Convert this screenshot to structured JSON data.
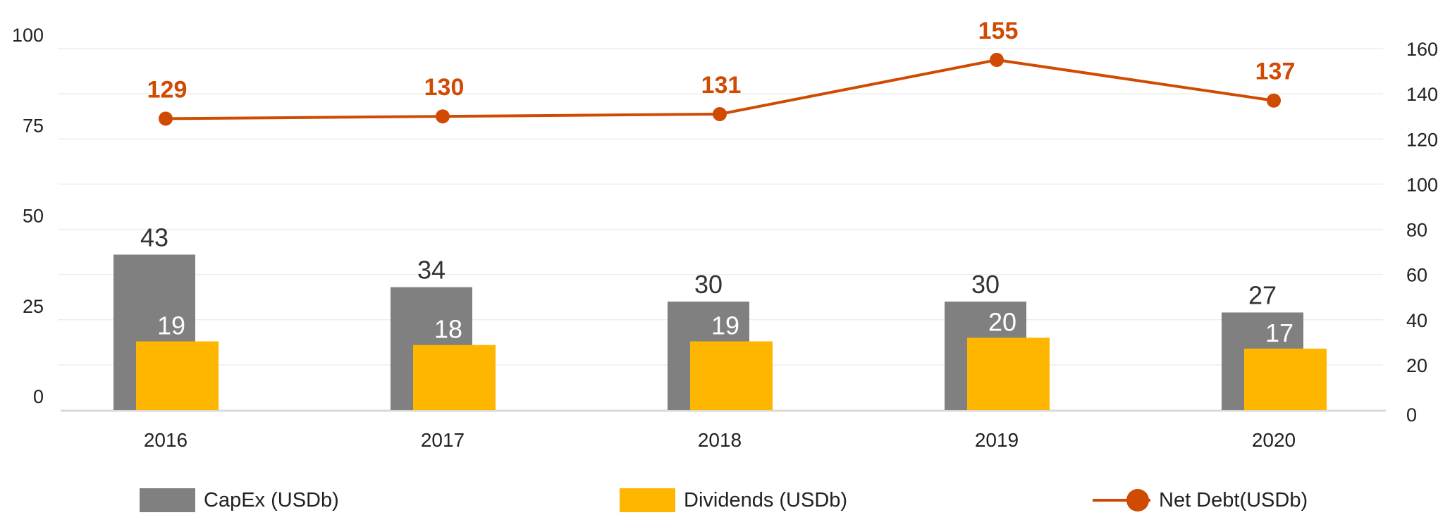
{
  "chart_data": {
    "type": "bar+line",
    "categories": [
      "2016",
      "2017",
      "2018",
      "2019",
      "2020"
    ],
    "series": [
      {
        "name": "CapEx (USDb)",
        "type": "bar",
        "axis": "left",
        "color": "#808080",
        "values": [
          43,
          34,
          30,
          30,
          27
        ]
      },
      {
        "name": "Dividends (USDb)",
        "type": "bar",
        "axis": "left",
        "color": "#FFB600",
        "values": [
          19,
          18,
          19,
          20,
          17
        ]
      },
      {
        "name": "Net Debt(USDb)",
        "type": "line",
        "axis": "right",
        "color": "#D04A02",
        "values": [
          129,
          130,
          131,
          155,
          137
        ]
      }
    ],
    "left_axis": {
      "range": [
        0,
        100
      ],
      "ticks": [
        "0",
        "25",
        "50",
        "75",
        "100"
      ]
    },
    "right_axis": {
      "range": [
        0,
        160
      ],
      "ticks": [
        "0",
        "20",
        "40",
        "60",
        "80",
        "100",
        "120",
        "140",
        "160"
      ]
    },
    "grid": true,
    "legend_position": "bottom"
  }
}
